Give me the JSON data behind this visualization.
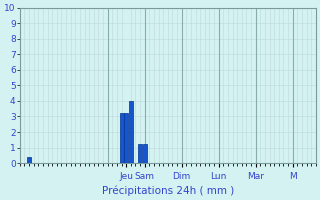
{
  "title": "Précipitations 24h ( mm )",
  "ylim": [
    0,
    10
  ],
  "yticks": [
    0,
    1,
    2,
    3,
    4,
    5,
    6,
    7,
    8,
    9,
    10
  ],
  "bar_positions": [
    2,
    22,
    23,
    24,
    26,
    27
  ],
  "bar_heights": [
    0.4,
    3.2,
    3.2,
    4.0,
    1.2,
    1.2
  ],
  "bar_color": "#1655cc",
  "bar_edge_color": "#003399",
  "background_color": "#d4f2f2",
  "grid_minor_color": "#c0d8d8",
  "grid_major_color": "#8aabab",
  "tick_label_color": "#3344cc",
  "xlabel_color": "#3344cc",
  "day_labels": [
    "Jeu",
    "Sam",
    "Dim",
    "Lun",
    "Mar",
    "M"
  ],
  "day_tick_positions": [
    23,
    27,
    35,
    43,
    51,
    59
  ],
  "day_vline_positions": [
    19,
    27,
    35,
    43,
    51,
    59
  ],
  "total_bars": 64,
  "bar_width": 0.9,
  "minor_step": 1,
  "major_step": 8
}
